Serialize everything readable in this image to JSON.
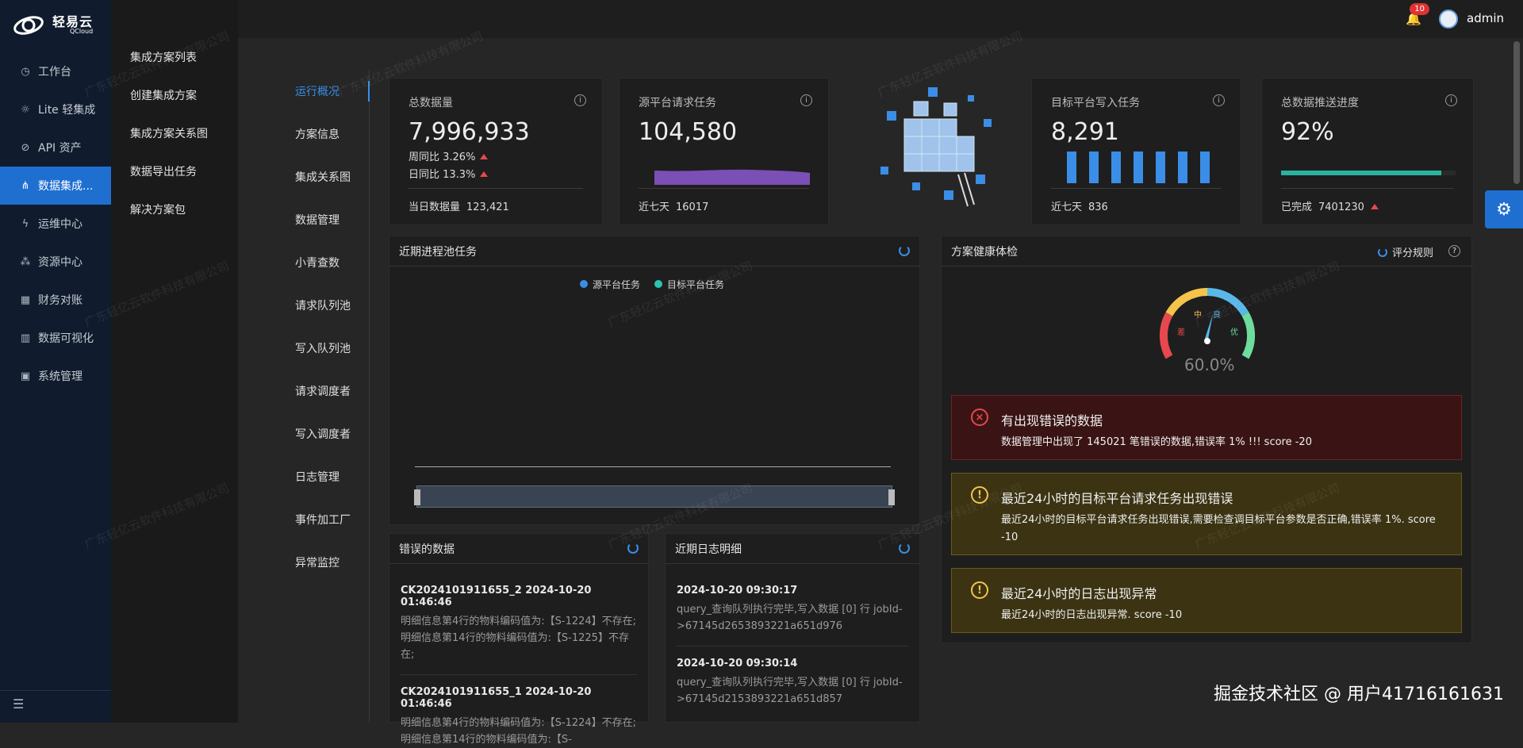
{
  "brand": {
    "name": "轻易云",
    "sub": "QCloud"
  },
  "leftnav": [
    {
      "label": "工作台",
      "icon": "clock-icon"
    },
    {
      "label": "Lite 轻集成",
      "icon": "bulb-icon"
    },
    {
      "label": "API 资产",
      "icon": "compass-icon"
    },
    {
      "label": "数据集成...",
      "icon": "share-icon"
    },
    {
      "label": "运维中心",
      "icon": "bolt-icon"
    },
    {
      "label": "资源中心",
      "icon": "cluster-icon"
    },
    {
      "label": "财务对账",
      "icon": "calculator-icon"
    },
    {
      "label": "数据可视化",
      "icon": "bar-chart-icon"
    },
    {
      "label": "系统管理",
      "icon": "grid-icon"
    }
  ],
  "subnav": [
    "集成方案列表",
    "创建集成方案",
    "集成方案关系图",
    "数据导出任务",
    "解决方案包"
  ],
  "thirdnav": [
    "运行概况",
    "方案信息",
    "集成关系图",
    "数据管理",
    "小青查数",
    "请求队列池",
    "写入队列池",
    "请求调度者",
    "写入调度者",
    "日志管理",
    "事件加工厂",
    "异常监控"
  ],
  "topbar": {
    "badge": "10",
    "user": "admin"
  },
  "stats": {
    "total": {
      "title": "总数据量",
      "value": "7,996,933",
      "week": "周同比 3.26%",
      "day": "日同比 13.3%",
      "foot_label": "当日数据量",
      "foot_value": "123,421"
    },
    "source": {
      "title": "源平台请求任务",
      "value": "104,580",
      "foot_label": "近七天",
      "foot_value": "16017"
    },
    "target": {
      "title": "目标平台写入任务",
      "value": "8,291",
      "foot_label": "近七天",
      "foot_value": "836"
    },
    "progress": {
      "title": "总数据推送进度",
      "value": "92%",
      "foot_label": "已完成",
      "foot_value": "7401230",
      "fraction": 0.92
    }
  },
  "process_panel": {
    "title": "近期进程池任务",
    "legend": [
      "源平台任务",
      "目标平台任务"
    ]
  },
  "health_panel": {
    "title": "方案健康体检",
    "rule": "评分规则",
    "gauge_value": "60.0%",
    "gauge_fraction": 0.6,
    "gauge_labels": [
      "差",
      "中",
      "良",
      "优"
    ]
  },
  "alerts": [
    {
      "title": "有出现错误的数据",
      "body": "数据管理中出现了 145021 笔错误的数据,错误率 1% !!! score -20",
      "kind": "error"
    },
    {
      "title": "最近24小时的目标平台请求任务出现错误",
      "body": "最近24小时的目标平台请求任务出现错误,需要检查调目标平台参数是否正确,错误率 1%. score -10",
      "kind": "warn"
    },
    {
      "title": "最近24小时的日志出现异常",
      "body": "最近24小时的日志出现异常. score -10",
      "kind": "warn"
    }
  ],
  "error_panel": {
    "title": "错误的数据",
    "items": [
      {
        "title": "CK2024101911655_2 2024-10-20 01:46:46",
        "text": "明细信息第4行的物料编码值为:【S-1224】不存在; 明细信息第14行的物料编码值为:【S-1225】不存在;"
      },
      {
        "title": "CK2024101911655_1 2024-10-20 01:46:46",
        "text": "明细信息第4行的物料编码值为:【S-1224】不存在; 明细信息第14行的物料编码值为:【S-"
      }
    ]
  },
  "log_panel": {
    "title": "近期日志明细",
    "items": [
      {
        "title": "2024-10-20 09:30:17",
        "text": "query_查询队列执行完毕,写入数据 [0] 行 jobId->67145d2653893221a651d976"
      },
      {
        "title": "2024-10-20 09:30:14",
        "text": "query_查询队列执行完毕,写入数据 [0] 行 jobId->67145d2153893221a651d857"
      }
    ]
  },
  "watermark": "广东轻亿云软件科技有限公司",
  "footer_mark": "掘金技术社区 @ 用户41716161631"
}
